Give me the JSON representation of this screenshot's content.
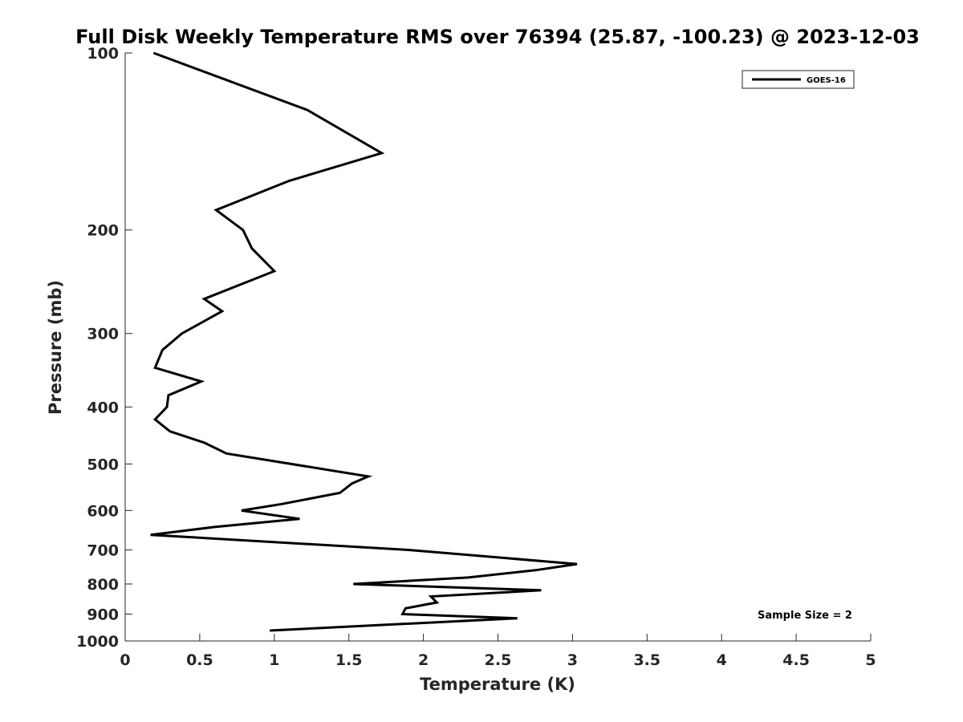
{
  "chart_data": {
    "type": "line",
    "title": "Full Disk Weekly Temperature RMS over 76394 (25.87, -100.23) @ 2023-12-03",
    "xlabel": "Temperature (K)",
    "ylabel": "Pressure (mb)",
    "xlim": [
      0,
      5
    ],
    "ylim": [
      100,
      1000
    ],
    "y_scale": "log",
    "y_reversed": true,
    "grid": false,
    "legend_position": "top-right",
    "x_ticks": [
      "0",
      "0.5",
      "1",
      "1.5",
      "2",
      "2.5",
      "3",
      "3.5",
      "4",
      "4.5",
      "5"
    ],
    "y_ticks": [
      "100",
      "200",
      "300",
      "400",
      "500",
      "600",
      "700",
      "800",
      "900",
      "1000"
    ],
    "annotation": "Sample Size = 2",
    "series": [
      {
        "name": "GOES-16",
        "color": "#000000",
        "points": [
          {
            "x": 0.19,
            "y": 100
          },
          {
            "x": 1.22,
            "y": 125
          },
          {
            "x": 1.72,
            "y": 148
          },
          {
            "x": 1.1,
            "y": 165
          },
          {
            "x": 0.61,
            "y": 185
          },
          {
            "x": 0.79,
            "y": 200
          },
          {
            "x": 0.85,
            "y": 215
          },
          {
            "x": 1.0,
            "y": 235
          },
          {
            "x": 0.53,
            "y": 262
          },
          {
            "x": 0.65,
            "y": 275
          },
          {
            "x": 0.38,
            "y": 300
          },
          {
            "x": 0.25,
            "y": 320
          },
          {
            "x": 0.2,
            "y": 343
          },
          {
            "x": 0.51,
            "y": 362
          },
          {
            "x": 0.29,
            "y": 382
          },
          {
            "x": 0.28,
            "y": 400
          },
          {
            "x": 0.2,
            "y": 420
          },
          {
            "x": 0.3,
            "y": 440
          },
          {
            "x": 0.53,
            "y": 460
          },
          {
            "x": 0.68,
            "y": 480
          },
          {
            "x": 1.63,
            "y": 525
          },
          {
            "x": 1.52,
            "y": 540
          },
          {
            "x": 1.44,
            "y": 560
          },
          {
            "x": 1.05,
            "y": 585
          },
          {
            "x": 0.78,
            "y": 600
          },
          {
            "x": 1.17,
            "y": 620
          },
          {
            "x": 0.6,
            "y": 640
          },
          {
            "x": 0.17,
            "y": 660
          },
          {
            "x": 1.9,
            "y": 700
          },
          {
            "x": 3.03,
            "y": 740
          },
          {
            "x": 2.75,
            "y": 758
          },
          {
            "x": 2.3,
            "y": 780
          },
          {
            "x": 1.53,
            "y": 800
          },
          {
            "x": 2.79,
            "y": 820
          },
          {
            "x": 2.05,
            "y": 840
          },
          {
            "x": 2.09,
            "y": 860
          },
          {
            "x": 1.88,
            "y": 880
          },
          {
            "x": 1.86,
            "y": 900
          },
          {
            "x": 2.63,
            "y": 915
          },
          {
            "x": 0.97,
            "y": 960
          }
        ]
      }
    ]
  }
}
